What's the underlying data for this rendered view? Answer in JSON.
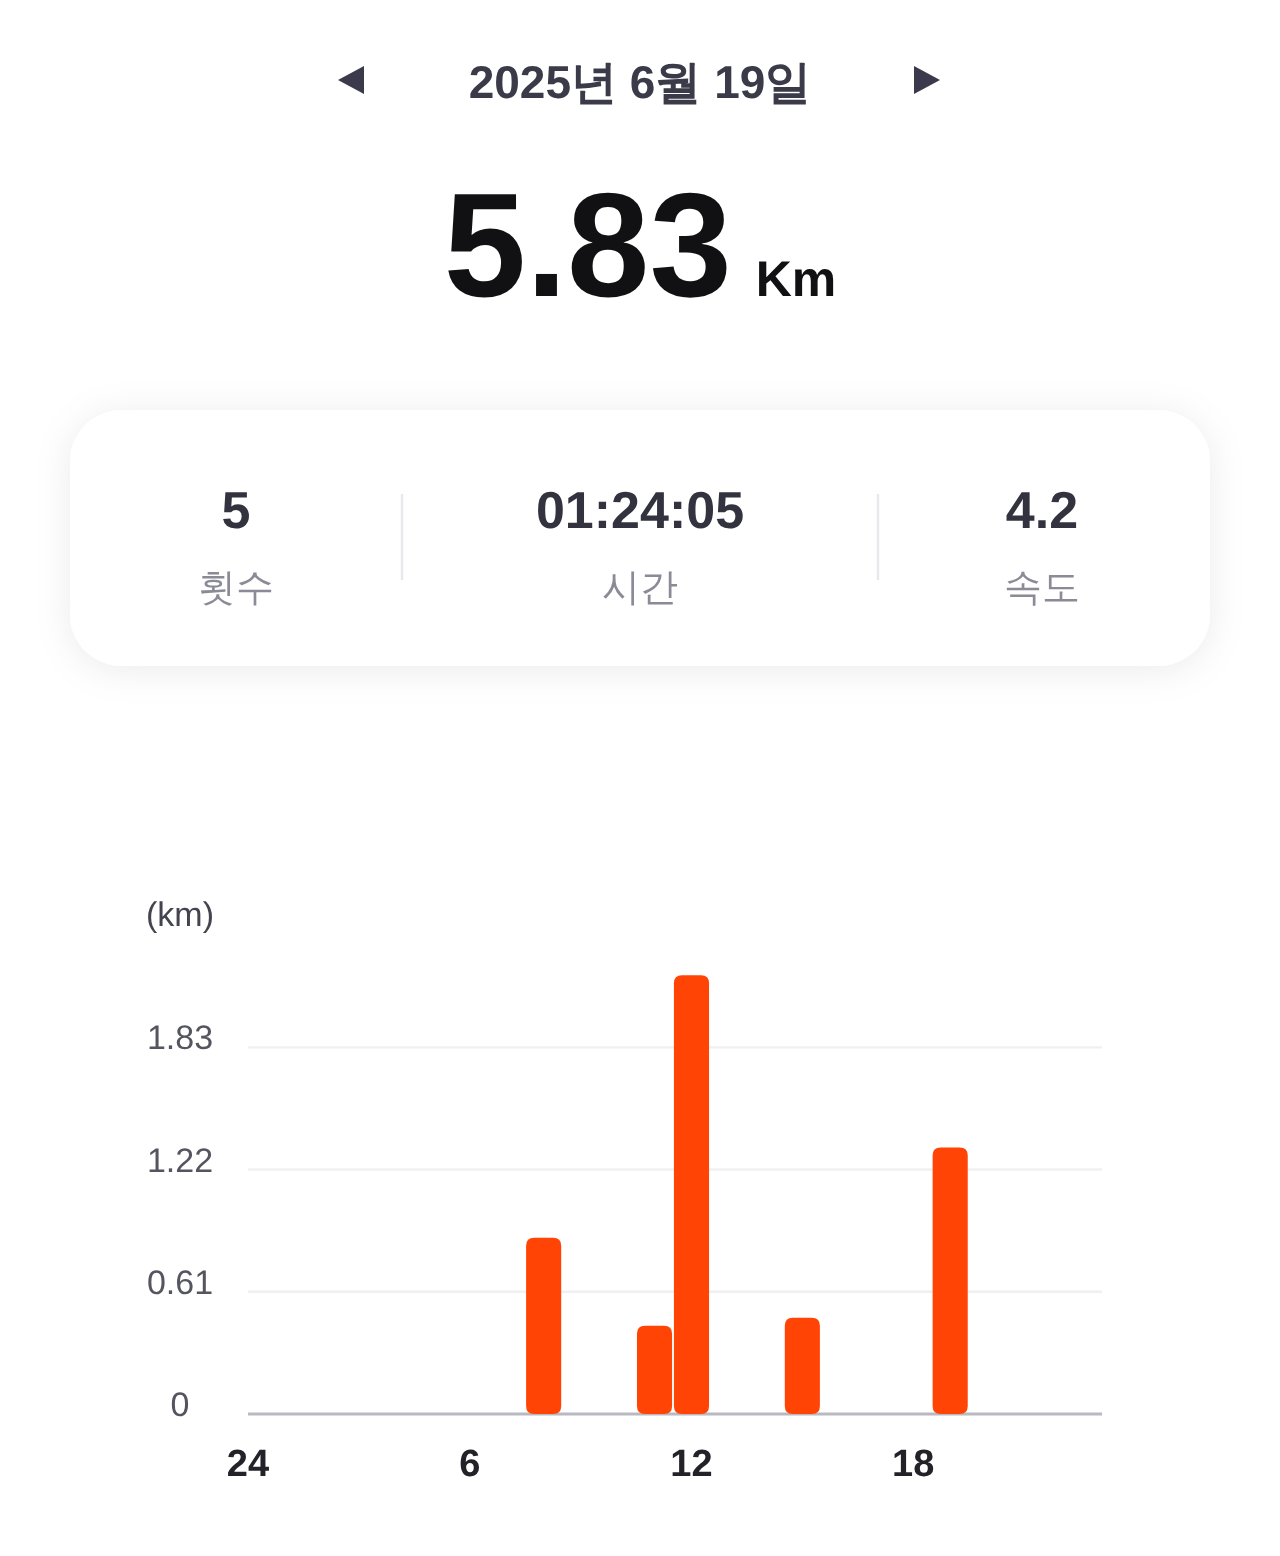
{
  "chart_data": {
    "type": "bar",
    "title": "2025년 6월 19일",
    "subtitle": "5.83 Km",
    "annotations": [
      "5",
      "횟수",
      "01:24:05",
      "시간",
      "4.2",
      "속도"
    ],
    "ylabel": "(km)",
    "categories": [
      "24",
      null,
      null,
      null,
      null,
      null,
      "6",
      null,
      null,
      null,
      null,
      null,
      "12",
      null,
      null,
      null,
      null,
      null,
      "18",
      null,
      null,
      null,
      null,
      null
    ],
    "values": [
      null,
      null,
      null,
      null,
      null,
      null,
      null,
      null,
      0.88,
      null,
      null,
      0.44,
      2.19,
      null,
      null,
      0.48,
      null,
      null,
      null,
      1.33,
      null,
      null,
      null,
      null
    ],
    "color": "#ff4405",
    "ylim": [
      0,
      2.19
    ],
    "yticks": [
      0,
      0.61,
      1.22,
      1.83
    ],
    "grid": "y"
  }
}
